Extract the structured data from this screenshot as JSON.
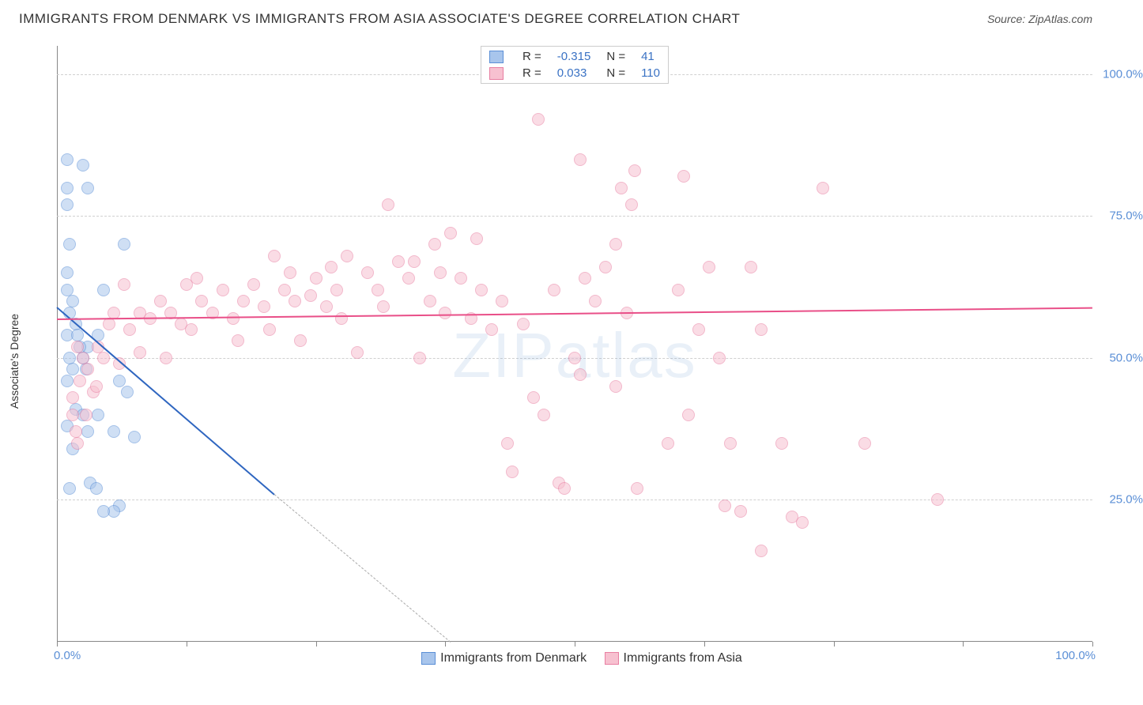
{
  "title": "IMMIGRANTS FROM DENMARK VS IMMIGRANTS FROM ASIA ASSOCIATE'S DEGREE CORRELATION CHART",
  "source_label": "Source: ZipAtlas.com",
  "watermark": "ZIPatlas",
  "yaxis_label": "Associate's Degree",
  "chart": {
    "type": "scatter",
    "xlim": [
      0,
      100
    ],
    "ylim": [
      0,
      105
    ],
    "x_tick_positions": [
      0,
      12.5,
      25,
      37.5,
      50,
      62.5,
      75,
      87.5,
      100
    ],
    "x_label_min": "0.0%",
    "x_label_max": "100.0%",
    "y_ticks": [
      25,
      50,
      75,
      100
    ],
    "y_tick_labels": [
      "25.0%",
      "50.0%",
      "75.0%",
      "100.0%"
    ],
    "grid_color": "#d0d0d0",
    "axis_color": "#888888",
    "tick_label_color": "#5b8fd6",
    "background_color": "#ffffff",
    "point_radius": 8,
    "point_opacity": 0.55,
    "series": [
      {
        "name": "Immigrants from Denmark",
        "fill_color": "#a8c5ec",
        "stroke_color": "#5b8fd6",
        "trend_color": "#2f66c0",
        "r_value": "-0.315",
        "n_value": "41",
        "trend": {
          "x1": 0,
          "y1": 59,
          "x2": 21,
          "y2": 26,
          "extend_x2": 38,
          "extend_y2": 0
        },
        "points": [
          [
            1.0,
            85
          ],
          [
            2.5,
            84
          ],
          [
            1.0,
            80
          ],
          [
            3.0,
            80
          ],
          [
            1.0,
            77
          ],
          [
            1.2,
            70
          ],
          [
            6.5,
            70
          ],
          [
            1.0,
            65
          ],
          [
            1.0,
            62
          ],
          [
            1.5,
            60
          ],
          [
            1.2,
            58
          ],
          [
            1.8,
            56
          ],
          [
            1.0,
            54
          ],
          [
            2.0,
            54
          ],
          [
            3.0,
            52
          ],
          [
            2.5,
            50
          ],
          [
            1.5,
            48
          ],
          [
            1.2,
            50
          ],
          [
            2.2,
            52
          ],
          [
            2.8,
            48
          ],
          [
            4.0,
            54
          ],
          [
            4.5,
            62
          ],
          [
            1.0,
            46
          ],
          [
            6.0,
            46
          ],
          [
            6.8,
            44
          ],
          [
            1.8,
            41
          ],
          [
            2.5,
            40
          ],
          [
            4.0,
            40
          ],
          [
            1.0,
            38
          ],
          [
            3.0,
            37
          ],
          [
            5.5,
            37
          ],
          [
            7.5,
            36
          ],
          [
            1.5,
            34
          ],
          [
            3.2,
            28
          ],
          [
            3.8,
            27
          ],
          [
            6.0,
            24
          ],
          [
            5.5,
            23
          ],
          [
            4.5,
            23
          ],
          [
            1.2,
            27
          ]
        ]
      },
      {
        "name": "Immigrants from Asia",
        "fill_color": "#f7c1d0",
        "stroke_color": "#e87fa2",
        "trend_color": "#e94f88",
        "r_value": "0.033",
        "n_value": "110",
        "trend": {
          "x1": 0,
          "y1": 57,
          "x2": 100,
          "y2": 59
        },
        "points": [
          [
            2.0,
            52
          ],
          [
            2.5,
            50
          ],
          [
            3.0,
            48
          ],
          [
            2.2,
            46
          ],
          [
            3.5,
            44
          ],
          [
            1.5,
            40
          ],
          [
            2.8,
            40
          ],
          [
            1.8,
            37
          ],
          [
            2.0,
            35
          ],
          [
            1.5,
            43
          ],
          [
            3.8,
            45
          ],
          [
            4.5,
            50
          ],
          [
            5.0,
            56
          ],
          [
            5.5,
            58
          ],
          [
            6.0,
            49
          ],
          [
            6.5,
            63
          ],
          [
            7.0,
            55
          ],
          [
            8.0,
            58
          ],
          [
            9.0,
            57
          ],
          [
            10.0,
            60
          ],
          [
            10.5,
            50
          ],
          [
            11.0,
            58
          ],
          [
            12.0,
            56
          ],
          [
            12.5,
            63
          ],
          [
            13.0,
            55
          ],
          [
            14.0,
            60
          ],
          [
            15.0,
            58
          ],
          [
            16.0,
            62
          ],
          [
            17.0,
            57
          ],
          [
            18.0,
            60
          ],
          [
            19.0,
            63
          ],
          [
            20.0,
            59
          ],
          [
            21.0,
            68
          ],
          [
            22.0,
            62
          ],
          [
            22.5,
            65
          ],
          [
            23.0,
            60
          ],
          [
            24.5,
            61
          ],
          [
            25.0,
            64
          ],
          [
            26.0,
            59
          ],
          [
            26.5,
            66
          ],
          [
            27.0,
            62
          ],
          [
            28.0,
            68
          ],
          [
            29.0,
            51
          ],
          [
            30.0,
            65
          ],
          [
            31.0,
            62
          ],
          [
            32.0,
            77
          ],
          [
            33.0,
            67
          ],
          [
            34.0,
            64
          ],
          [
            35.0,
            50
          ],
          [
            36.0,
            60
          ],
          [
            36.5,
            70
          ],
          [
            37.0,
            65
          ],
          [
            38.0,
            72
          ],
          [
            39.0,
            64
          ],
          [
            40.0,
            57
          ],
          [
            41.0,
            62
          ],
          [
            42.0,
            55
          ],
          [
            43.0,
            60
          ],
          [
            44.0,
            30
          ],
          [
            45.0,
            56
          ],
          [
            46.0,
            43
          ],
          [
            46.5,
            92
          ],
          [
            47.0,
            40
          ],
          [
            48.0,
            62
          ],
          [
            48.5,
            28
          ],
          [
            49.0,
            27
          ],
          [
            50.0,
            50
          ],
          [
            50.5,
            85
          ],
          [
            51.0,
            64
          ],
          [
            52.0,
            60
          ],
          [
            53.0,
            66
          ],
          [
            54.0,
            45
          ],
          [
            54.5,
            80
          ],
          [
            55.0,
            58
          ],
          [
            55.5,
            77
          ],
          [
            55.8,
            83
          ],
          [
            56.0,
            27
          ],
          [
            59.0,
            35
          ],
          [
            60.0,
            62
          ],
          [
            60.5,
            82
          ],
          [
            61.0,
            40
          ],
          [
            62.0,
            55
          ],
          [
            63.0,
            66
          ],
          [
            64.0,
            50
          ],
          [
            64.5,
            24
          ],
          [
            65.0,
            35
          ],
          [
            66.0,
            23
          ],
          [
            67.0,
            66
          ],
          [
            68.0,
            55
          ],
          [
            68.0,
            16
          ],
          [
            70.0,
            35
          ],
          [
            71.0,
            22
          ],
          [
            72.0,
            21
          ],
          [
            74.0,
            80
          ],
          [
            78.0,
            35
          ],
          [
            85.0,
            25
          ],
          [
            8.0,
            51
          ],
          [
            13.5,
            64
          ],
          [
            17.5,
            53
          ],
          [
            20.5,
            55
          ],
          [
            23.5,
            53
          ],
          [
            27.5,
            57
          ],
          [
            31.5,
            59
          ],
          [
            34.5,
            67
          ],
          [
            37.5,
            58
          ],
          [
            40.5,
            71
          ],
          [
            43.5,
            35
          ],
          [
            50.5,
            47
          ],
          [
            54.0,
            70
          ],
          [
            4.0,
            52
          ]
        ]
      }
    ]
  },
  "legend_top": {
    "r_label": "R =",
    "n_label": "N ="
  },
  "legend_bottom_spacer": "   "
}
